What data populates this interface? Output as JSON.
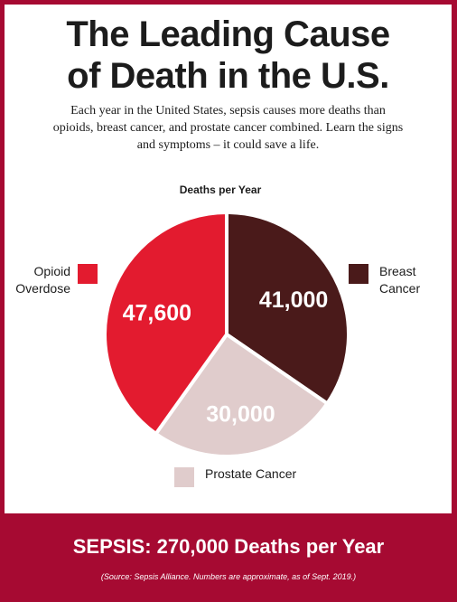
{
  "header": {
    "title_line1": "The Leading Cause",
    "title_line2": "of Death in the U.S.",
    "intro_line1": "Each year in the United States, sepsis causes more deaths than",
    "intro_line2": "opioids, breast cancer, and prostate cancer combined. Learn the signs",
    "intro_line3": "and symptoms – it could save a life."
  },
  "chart_data": {
    "type": "pie",
    "title": "Deaths per Year",
    "slices": [
      {
        "label": "Breast Cancer",
        "label_lines": [
          "Breast",
          "Cancer"
        ],
        "value": 41000,
        "display": "41,000",
        "color": "#4a1a1a",
        "value_text_color": "#ffffff"
      },
      {
        "label": "Prostate Cancer",
        "label_lines": [
          "Prostate Cancer"
        ],
        "value": 30000,
        "display": "30,000",
        "color": "#e0cccc",
        "value_text_color": "#ffffff"
      },
      {
        "label": "Opioid Overdose",
        "label_lines": [
          "Opioid",
          "Overdose"
        ],
        "value": 47600,
        "display": "47,600",
        "color": "#e31b2f",
        "value_text_color": "#ffffff"
      }
    ],
    "start_angle": "12 o'clock",
    "direction": "clockwise"
  },
  "footer": {
    "headline": "SEPSIS: 270,000 Deaths per Year",
    "source": "(Source: Sepsis Alliance. Numbers are approximate, as of Sept. 2019.)"
  },
  "colors": {
    "frame": "#a60a32",
    "title_text": "#1c1c1c",
    "footer_text": "#ffffff"
  }
}
